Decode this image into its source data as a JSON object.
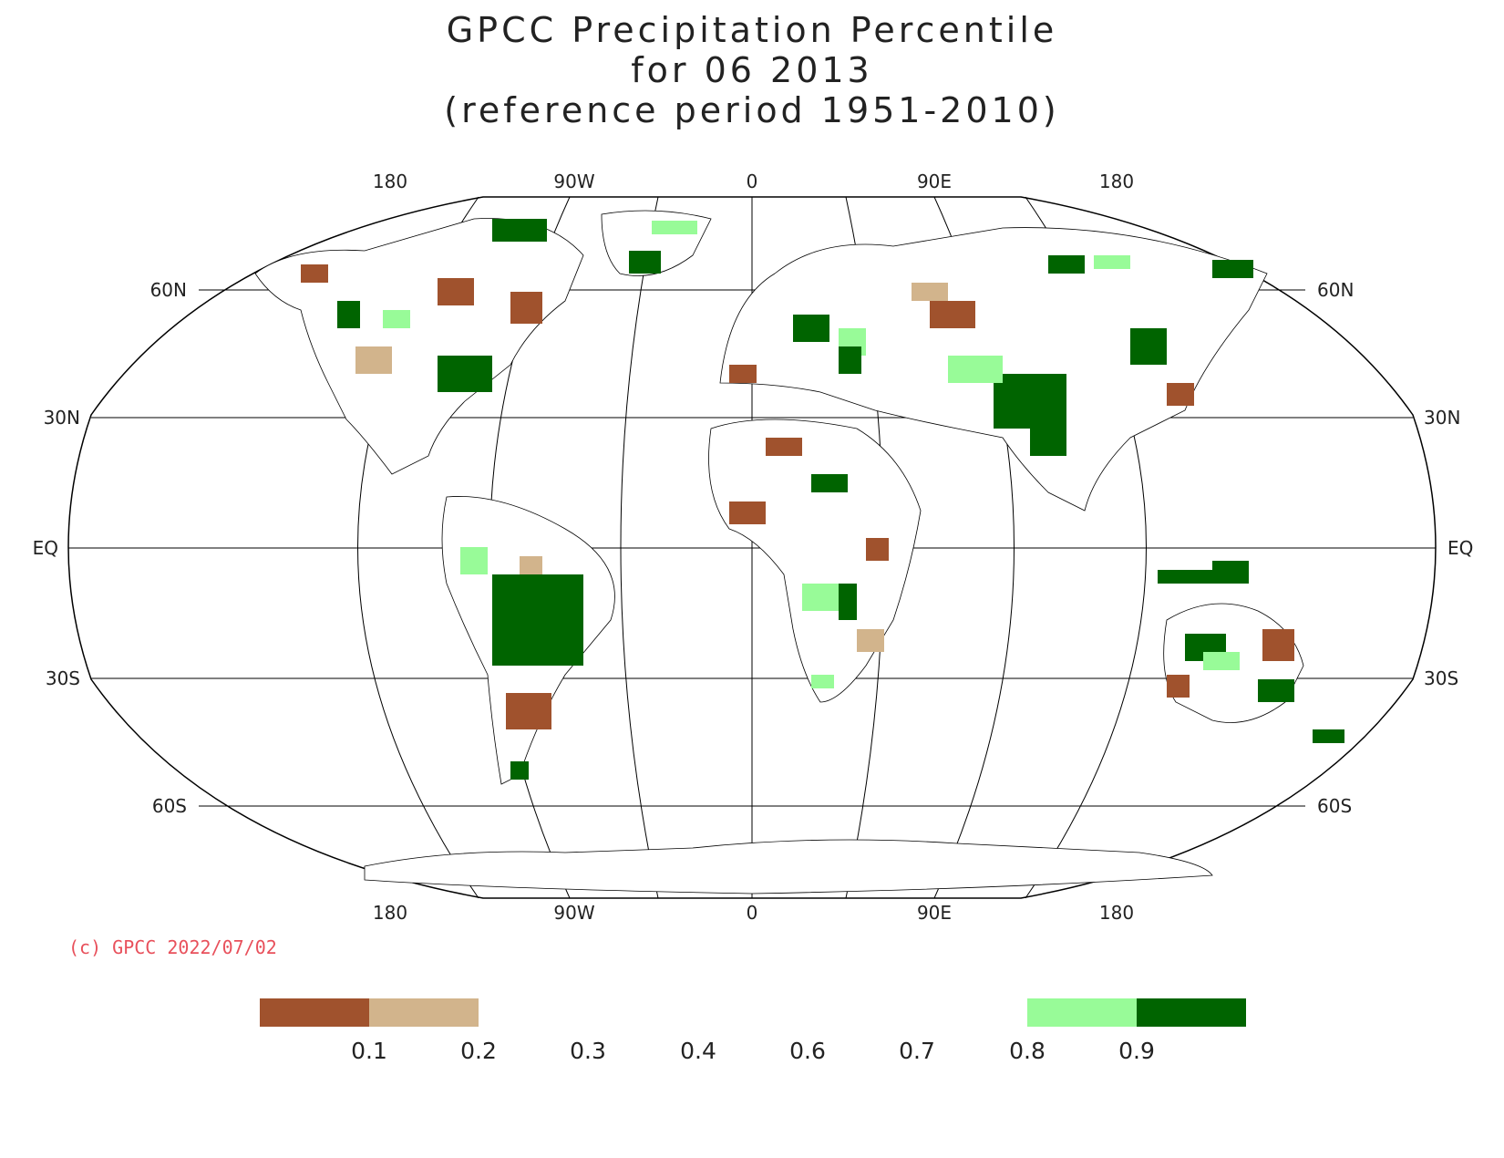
{
  "title": {
    "line1": "GPCC Precipitation Percentile",
    "line2": "for 06 2013",
    "line3": "(reference period 1951-2010)"
  },
  "map": {
    "projection": "Robinson",
    "lon_top_labels": [
      "180",
      "90W",
      "0",
      "90E",
      "180"
    ],
    "lon_bottom_labels": [
      "180",
      "90W",
      "0",
      "90E",
      "180"
    ],
    "lat_left_labels": [
      "60N",
      "30N",
      "EQ",
      "30S",
      "60S"
    ],
    "lat_right_labels": [
      "60N",
      "30N",
      "EQ",
      "30S",
      "60S"
    ]
  },
  "copyright": "(c) GPCC 2022/07/02",
  "colorbar": {
    "labels": [
      "0.1",
      "0.2",
      "0.3",
      "0.4",
      "0.6",
      "0.7",
      "0.8",
      "0.9"
    ],
    "colors": {
      "below_0_1": "#a0522d",
      "between_0_1_0_2": "#d2b48c",
      "between_0_8_0_9": "#98fb98",
      "above_0_9": "#006400"
    }
  }
}
